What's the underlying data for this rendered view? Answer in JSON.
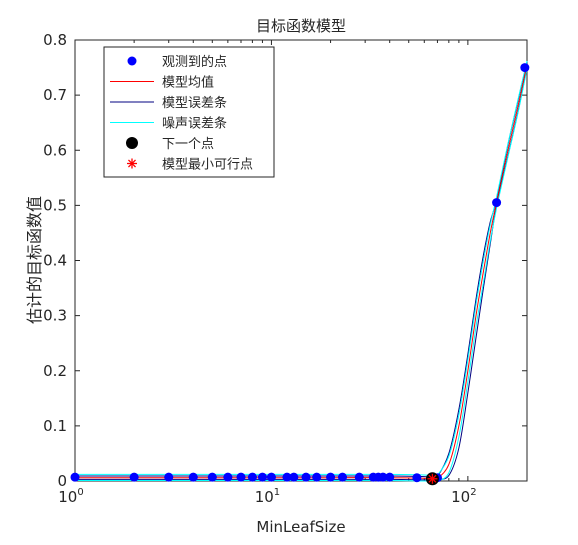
{
  "chart_data": {
    "type": "scatter",
    "title": "目标函数模型",
    "xlabel": "MinLeafSize",
    "ylabel": "估计的目标函数值",
    "x_scale": "log",
    "xlim": [
      1,
      200
    ],
    "ylim": [
      0,
      0.8
    ],
    "x_ticks": [
      {
        "value": 1,
        "base": "10",
        "exp": "0"
      },
      {
        "value": 10,
        "base": "10",
        "exp": "1"
      },
      {
        "value": 100,
        "base": "10",
        "exp": "2"
      }
    ],
    "y_ticks": [
      "0",
      "0.1",
      "0.2",
      "0.3",
      "0.4",
      "0.5",
      "0.6",
      "0.7",
      "0.8"
    ],
    "y_tick_values": [
      0,
      0.1,
      0.2,
      0.3,
      0.4,
      0.5,
      0.6,
      0.7,
      0.8
    ],
    "grid": false,
    "legend_position": "top-left",
    "legend": [
      {
        "label": "观测到的点",
        "marker": "dot",
        "color": "#0000ff"
      },
      {
        "label": "模型均值",
        "marker": "line",
        "color": "#ff0000"
      },
      {
        "label": "模型误差条",
        "marker": "line",
        "color": "#000080"
      },
      {
        "label": "噪声误差条",
        "marker": "line",
        "color": "#00ffff"
      },
      {
        "label": "下一个点",
        "marker": "bigdot",
        "color": "#000000"
      },
      {
        "label": "模型最小可行点",
        "marker": "star",
        "color": "#ff0000"
      }
    ],
    "observed_points": {
      "x": [
        1,
        2,
        3,
        4,
        5,
        6,
        7,
        8,
        9,
        10,
        12,
        13,
        15,
        17,
        20,
        23,
        28,
        33,
        35,
        37,
        40,
        55,
        66,
        70,
        140,
        195
      ],
      "y": [
        0.007,
        0.007,
        0.007,
        0.007,
        0.007,
        0.007,
        0.007,
        0.007,
        0.007,
        0.007,
        0.007,
        0.007,
        0.007,
        0.007,
        0.007,
        0.007,
        0.007,
        0.007,
        0.007,
        0.007,
        0.007,
        0.006,
        0.004,
        0.006,
        0.505,
        0.75
      ]
    },
    "model_mean": {
      "x": [
        1,
        5,
        10,
        20,
        40,
        60,
        66,
        70,
        80,
        90,
        100,
        110,
        120,
        130,
        140,
        160,
        180,
        200
      ],
      "y": [
        0.006,
        0.006,
        0.006,
        0.006,
        0.006,
        0.005,
        0.004,
        0.005,
        0.03,
        0.1,
        0.2,
        0.3,
        0.38,
        0.45,
        0.505,
        0.6,
        0.68,
        0.755
      ]
    },
    "model_error": {
      "upper": [
        0.009,
        0.009,
        0.009,
        0.009,
        0.009,
        0.008,
        0.006,
        0.008,
        0.05,
        0.13,
        0.23,
        0.33,
        0.41,
        0.47,
        0.51,
        0.61,
        0.69,
        0.76
      ],
      "lower": [
        0.003,
        0.003,
        0.003,
        0.003,
        0.003,
        0.002,
        0.002,
        0.003,
        0.01,
        0.06,
        0.16,
        0.26,
        0.35,
        0.43,
        0.5,
        0.59,
        0.67,
        0.75
      ]
    },
    "noise_error": {
      "upper": [
        0.012,
        0.012,
        0.012,
        0.012,
        0.012,
        0.011,
        0.009,
        0.011,
        0.045,
        0.12,
        0.22,
        0.32,
        0.4,
        0.465,
        0.515,
        0.612,
        0.692,
        0.762
      ],
      "lower": [
        0.001,
        0.001,
        0.001,
        0.001,
        0.001,
        0.0,
        0.0,
        0.0,
        0.015,
        0.08,
        0.18,
        0.28,
        0.36,
        0.435,
        0.495,
        0.588,
        0.668,
        0.748
      ]
    },
    "next_point": {
      "x": 66,
      "y": 0.004
    },
    "model_min_feasible": {
      "x": 66,
      "y": 0.004
    }
  }
}
